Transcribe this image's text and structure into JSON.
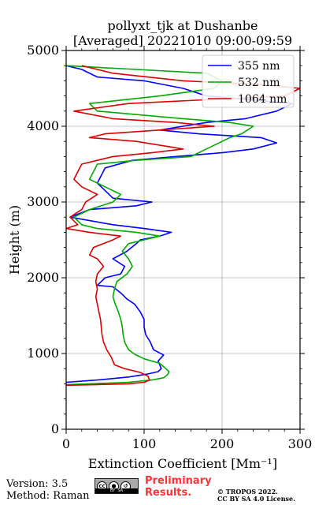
{
  "chart_data": {
    "type": "line",
    "title": "pollyxt_tjk at Dushanbe",
    "subtitle": "[Averaged] 20221010 09:00-09:59",
    "xlabel": "Extinction Coefficient [Mm⁻¹]",
    "ylabel": "Height (m)",
    "xlim": [
      0,
      300
    ],
    "ylim": [
      0,
      5000
    ],
    "x_ticks": [
      0,
      100,
      200,
      300
    ],
    "y_ticks": [
      0,
      1000,
      2000,
      3000,
      4000,
      5000
    ],
    "grid": true,
    "legend_position": "top-right",
    "series": [
      {
        "name": "355 nm",
        "color": "#0000ff",
        "points": [
          [
            0,
            620
          ],
          [
            40,
            650
          ],
          [
            80,
            690
          ],
          [
            105,
            730
          ],
          [
            118,
            760
          ],
          [
            122,
            800
          ],
          [
            118,
            900
          ],
          [
            125,
            980
          ],
          [
            112,
            1050
          ],
          [
            108,
            1150
          ],
          [
            102,
            1250
          ],
          [
            100,
            1350
          ],
          [
            100,
            1450
          ],
          [
            95,
            1550
          ],
          [
            88,
            1650
          ],
          [
            78,
            1720
          ],
          [
            70,
            1800
          ],
          [
            60,
            1880
          ],
          [
            40,
            1900
          ],
          [
            50,
            2000
          ],
          [
            70,
            2050
          ],
          [
            75,
            2150
          ],
          [
            60,
            2250
          ],
          [
            78,
            2350
          ],
          [
            90,
            2450
          ],
          [
            95,
            2500
          ],
          [
            120,
            2550
          ],
          [
            135,
            2600
          ],
          [
            100,
            2650
          ],
          [
            60,
            2700
          ],
          [
            5,
            2800
          ],
          [
            30,
            2900
          ],
          [
            90,
            2950
          ],
          [
            110,
            3000
          ],
          [
            60,
            3050
          ],
          [
            50,
            3150
          ],
          [
            40,
            3250
          ],
          [
            45,
            3350
          ],
          [
            50,
            3450
          ],
          [
            85,
            3550
          ],
          [
            140,
            3600
          ],
          [
            200,
            3650
          ],
          [
            240,
            3700
          ],
          [
            270,
            3780
          ],
          [
            250,
            3850
          ],
          [
            170,
            3900
          ],
          [
            120,
            3950
          ],
          [
            150,
            4000
          ],
          [
            180,
            4050
          ],
          [
            230,
            4100
          ],
          [
            270,
            4200
          ],
          [
            290,
            4300
          ],
          [
            180,
            4400
          ],
          [
            150,
            4500
          ],
          [
            100,
            4600
          ],
          [
            40,
            4650
          ],
          [
            20,
            4750
          ],
          [
            0,
            4800
          ]
        ]
      },
      {
        "name": "532 nm",
        "color": "#00aa00",
        "points": [
          [
            0,
            590
          ],
          [
            30,
            600
          ],
          [
            80,
            620
          ],
          [
            110,
            650
          ],
          [
            125,
            680
          ],
          [
            130,
            720
          ],
          [
            132,
            760
          ],
          [
            128,
            800
          ],
          [
            120,
            870
          ],
          [
            100,
            930
          ],
          [
            88,
            990
          ],
          [
            80,
            1050
          ],
          [
            75,
            1150
          ],
          [
            73,
            1250
          ],
          [
            72,
            1350
          ],
          [
            70,
            1450
          ],
          [
            67,
            1550
          ],
          [
            63,
            1650
          ],
          [
            60,
            1750
          ],
          [
            62,
            1850
          ],
          [
            65,
            1950
          ],
          [
            78,
            2050
          ],
          [
            85,
            2150
          ],
          [
            80,
            2250
          ],
          [
            72,
            2350
          ],
          [
            80,
            2450
          ],
          [
            100,
            2500
          ],
          [
            120,
            2550
          ],
          [
            90,
            2600
          ],
          [
            40,
            2650
          ],
          [
            20,
            2700
          ],
          [
            10,
            2800
          ],
          [
            30,
            2900
          ],
          [
            60,
            3000
          ],
          [
            70,
            3100
          ],
          [
            50,
            3200
          ],
          [
            30,
            3300
          ],
          [
            35,
            3400
          ],
          [
            40,
            3500
          ],
          [
            90,
            3550
          ],
          [
            160,
            3600
          ],
          [
            170,
            3650
          ],
          [
            180,
            3700
          ],
          [
            200,
            3800
          ],
          [
            210,
            3850
          ],
          [
            225,
            3900
          ],
          [
            240,
            4000
          ],
          [
            210,
            4050
          ],
          [
            150,
            4100
          ],
          [
            40,
            4200
          ],
          [
            30,
            4300
          ],
          [
            120,
            4400
          ],
          [
            190,
            4500
          ],
          [
            200,
            4600
          ],
          [
            180,
            4700
          ],
          [
            90,
            4750
          ],
          [
            0,
            4800
          ]
        ]
      },
      {
        "name": "1064 nm",
        "color": "#dd0000",
        "points": [
          [
            0,
            580
          ],
          [
            40,
            590
          ],
          [
            80,
            600
          ],
          [
            100,
            620
          ],
          [
            107,
            650
          ],
          [
            105,
            700
          ],
          [
            95,
            750
          ],
          [
            75,
            800
          ],
          [
            62,
            850
          ],
          [
            58,
            950
          ],
          [
            52,
            1050
          ],
          [
            48,
            1150
          ],
          [
            46,
            1250
          ],
          [
            45,
            1350
          ],
          [
            44,
            1450
          ],
          [
            42,
            1550
          ],
          [
            40,
            1650
          ],
          [
            38,
            1750
          ],
          [
            40,
            1850
          ],
          [
            38,
            1950
          ],
          [
            40,
            2050
          ],
          [
            48,
            2150
          ],
          [
            40,
            2250
          ],
          [
            30,
            2300
          ],
          [
            35,
            2400
          ],
          [
            60,
            2500
          ],
          [
            70,
            2550
          ],
          [
            30,
            2600
          ],
          [
            0,
            2650
          ],
          [
            15,
            2700
          ],
          [
            5,
            2800
          ],
          [
            20,
            2900
          ],
          [
            25,
            3000
          ],
          [
            40,
            3100
          ],
          [
            20,
            3200
          ],
          [
            10,
            3300
          ],
          [
            15,
            3400
          ],
          [
            20,
            3500
          ],
          [
            60,
            3600
          ],
          [
            110,
            3650
          ],
          [
            150,
            3700
          ],
          [
            90,
            3800
          ],
          [
            30,
            3850
          ],
          [
            50,
            3900
          ],
          [
            120,
            3950
          ],
          [
            190,
            4000
          ],
          [
            140,
            4050
          ],
          [
            60,
            4100
          ],
          [
            10,
            4200
          ],
          [
            80,
            4300
          ],
          [
            280,
            4400
          ],
          [
            300,
            4500
          ],
          [
            250,
            4550
          ],
          [
            150,
            4600
          ],
          [
            60,
            4700
          ],
          [
            20,
            4800
          ]
        ]
      }
    ]
  },
  "footer": {
    "version": "Version: 3.5",
    "method": "Method: Raman",
    "preliminary_line1": "Preliminary",
    "preliminary_line2": "Results.",
    "copyright_line1": "© TROPOS 2022.",
    "copyright_line2": "CC BY SA 4.0 License.",
    "cc_badge": "cc-by-sa-license-badge"
  }
}
